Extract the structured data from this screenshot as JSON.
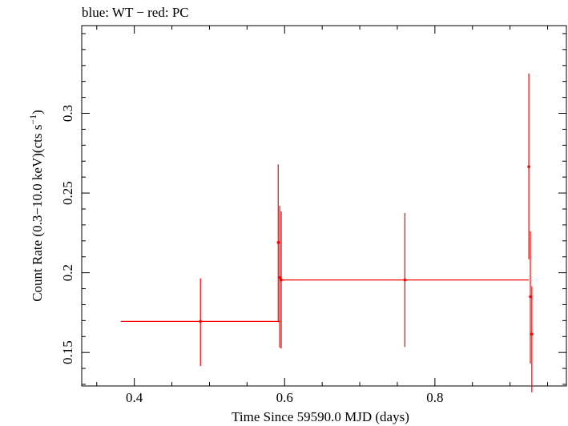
{
  "chart_data": {
    "type": "scatter",
    "title": "blue: WT − red: PC",
    "xlabel": "Time Since 59590.0 MJD (days)",
    "ylabel_main": "Count Rate (0.3−10.0 keV)(cts s",
    "ylabel_sup": "−1",
    "ylabel_end": ")",
    "xlim": [
      0.33,
      0.975
    ],
    "ylim": [
      0.129,
      0.355
    ],
    "x_ticks": [
      {
        "value": 0.4,
        "label": "0.4"
      },
      {
        "value": 0.6,
        "label": "0.6"
      },
      {
        "value": 0.8,
        "label": "0.8"
      }
    ],
    "y_ticks": [
      {
        "value": 0.15,
        "label": "0.15"
      },
      {
        "value": 0.2,
        "label": "0.2"
      },
      {
        "value": 0.25,
        "label": "0.25"
      },
      {
        "value": 0.3,
        "label": "0.3"
      }
    ],
    "x_minor_step": 0.05,
    "y_minor_step": 0.01,
    "grid": false,
    "series": [
      {
        "name": "PC",
        "color": "#ff0000",
        "points": [
          {
            "x": 0.488,
            "xerr_lo": 0.106,
            "xerr_hi": 0.106,
            "y": 0.1695,
            "yerr_lo": 0.028,
            "yerr_hi": 0.027
          },
          {
            "x": 0.5915,
            "xerr_lo": 0.0005,
            "xerr_hi": 0.0005,
            "y": 0.219,
            "yerr_lo": 0.05,
            "yerr_hi": 0.049
          },
          {
            "x": 0.5935,
            "xerr_lo": 0.0005,
            "xerr_hi": 0.0005,
            "y": 0.197,
            "yerr_lo": 0.044,
            "yerr_hi": 0.045
          },
          {
            "x": 0.5955,
            "xerr_lo": 0.0005,
            "xerr_hi": 0.0005,
            "y": 0.1955,
            "yerr_lo": 0.043,
            "yerr_hi": 0.043
          },
          {
            "x": 0.76,
            "xerr_lo": 0.165,
            "xerr_hi": 0.165,
            "y": 0.1955,
            "yerr_lo": 0.042,
            "yerr_hi": 0.042
          },
          {
            "x": 0.925,
            "xerr_lo": 0.0005,
            "xerr_hi": 0.0005,
            "y": 0.2665,
            "yerr_lo": 0.058,
            "yerr_hi": 0.0585
          },
          {
            "x": 0.927,
            "xerr_lo": 0.0005,
            "xerr_hi": 0.0005,
            "y": 0.185,
            "yerr_lo": 0.042,
            "yerr_hi": 0.041
          },
          {
            "x": 0.929,
            "xerr_lo": 0.0005,
            "xerr_hi": 0.0005,
            "y": 0.1615,
            "yerr_lo": 0.0365,
            "yerr_hi": 0.03
          }
        ]
      }
    ]
  }
}
